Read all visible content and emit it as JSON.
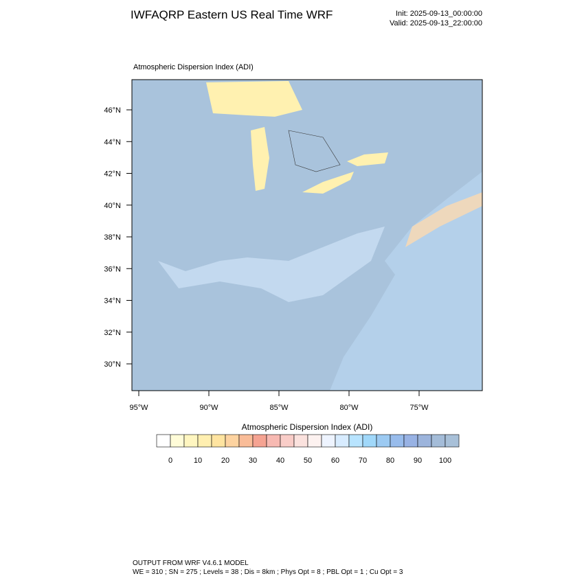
{
  "header": {
    "title": "IWFAQRP Eastern US Real Time WRF",
    "init": "Init: 2025-09-13_00:00:00",
    "valid": "Valid: 2025-09-13_22:00:00"
  },
  "map": {
    "subtitle": "Atmospheric Dispersion Index   (ADI)",
    "lat_labels": [
      "46°N",
      "44°N",
      "42°N",
      "40°N",
      "38°N",
      "36°N",
      "34°N",
      "32°N",
      "30°N"
    ],
    "lon_labels": [
      "95°W",
      "90°W",
      "85°W",
      "80°W",
      "75°W"
    ]
  },
  "colorbar": {
    "title": "Atmospheric Dispersion Index  (ADI)",
    "labels": [
      "0",
      "10",
      "20",
      "30",
      "40",
      "50",
      "60",
      "70",
      "80",
      "90",
      "100"
    ],
    "colors": [
      "#ffffff",
      "#fffcd8",
      "#fff6c0",
      "#ffefb0",
      "#ffe4a0",
      "#fdd3a0",
      "#f9bc98",
      "#f5a392",
      "#f7b9b2",
      "#f9cdc8",
      "#fbe2de",
      "#fdf2f0",
      "#eef4ff",
      "#d8ecff",
      "#b8e4ff",
      "#a0d8fa",
      "#9ccaf2",
      "#98bcec",
      "#98b2e4",
      "#9cb4dc",
      "#a4bcd8",
      "#a8c0d8"
    ]
  },
  "footer": {
    "line1": "OUTPUT FROM WRF V4.6.1 MODEL",
    "line2": "WE = 310 ; SN = 275 ; Levels = 38 ; Dis = 8km ; Phys Opt = 8 ; PBL Opt = 1 ; Cu Opt = 3"
  }
}
